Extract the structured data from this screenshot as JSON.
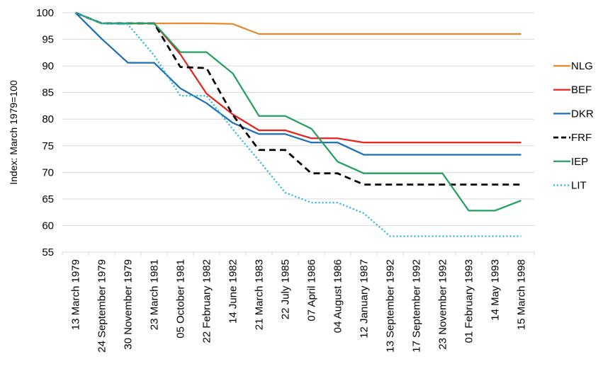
{
  "chart_data": {
    "type": "line",
    "ylabel": "Index: March 1979=100",
    "xlabel": "",
    "ylim": [
      55,
      100
    ],
    "yticks": [
      55,
      60,
      65,
      70,
      75,
      80,
      85,
      90,
      95,
      100
    ],
    "grid": "horizontal",
    "legend_position": "right",
    "categories": [
      "13 March 1979",
      "24 September 1979",
      "30 November 1979",
      "23 March 1981",
      "05 October 1981",
      "22 February 1982",
      "14 June 1982",
      "21 March 1983",
      "22 July 1985",
      "07 April 1986",
      "04 August 1986",
      "12 January 1987",
      "13 September 1992",
      "17 September 1992",
      "23 November 1992",
      "01 February 1993",
      "14 May 1993",
      "15 March 1998"
    ],
    "series": [
      {
        "name": "NLG",
        "color": "#E8892B",
        "dash": "solid",
        "values": [
          100,
          98,
          98,
          98,
          98,
          98,
          97.9,
          96,
          96,
          96,
          96,
          96,
          96,
          96,
          96,
          96,
          96,
          96
        ]
      },
      {
        "name": "BEF",
        "color": "#E8231F",
        "dash": "solid",
        "values": [
          100,
          98,
          98,
          98,
          92.2,
          84.8,
          80.9,
          77.9,
          77.9,
          76.4,
          76.4,
          75.6,
          75.6,
          75.6,
          75.6,
          75.6,
          75.6,
          75.6
        ]
      },
      {
        "name": "DKR",
        "color": "#1F6FB5",
        "dash": "solid",
        "values": [
          100,
          95.1,
          90.6,
          90.6,
          85.8,
          83,
          79.3,
          77.2,
          77.2,
          75.6,
          75.6,
          73.3,
          73.3,
          73.3,
          73.3,
          73.3,
          73.3,
          73.3
        ]
      },
      {
        "name": "FRF",
        "color": "#000000",
        "dash": "dashed",
        "values": [
          100,
          98,
          98,
          98,
          89.8,
          89.6,
          80.8,
          74.2,
          74.2,
          69.8,
          69.8,
          67.7,
          67.7,
          67.7,
          67.7,
          67.7,
          67.7,
          67.7
        ]
      },
      {
        "name": "IEP",
        "color": "#22A060",
        "dash": "solid",
        "values": [
          100,
          98,
          98,
          98,
          92.6,
          92.6,
          88.6,
          80.6,
          80.6,
          78.2,
          72,
          69.8,
          69.8,
          69.8,
          69.8,
          62.8,
          62.8,
          64.7
        ]
      },
      {
        "name": "LIT",
        "color": "#22B5E6",
        "dash": "dotted",
        "values": [
          100,
          98,
          97.8,
          92,
          84.4,
          84.4,
          78.1,
          72.2,
          66.2,
          64.3,
          64.3,
          62.3,
          58,
          58,
          58,
          58,
          58,
          58
        ]
      }
    ]
  }
}
